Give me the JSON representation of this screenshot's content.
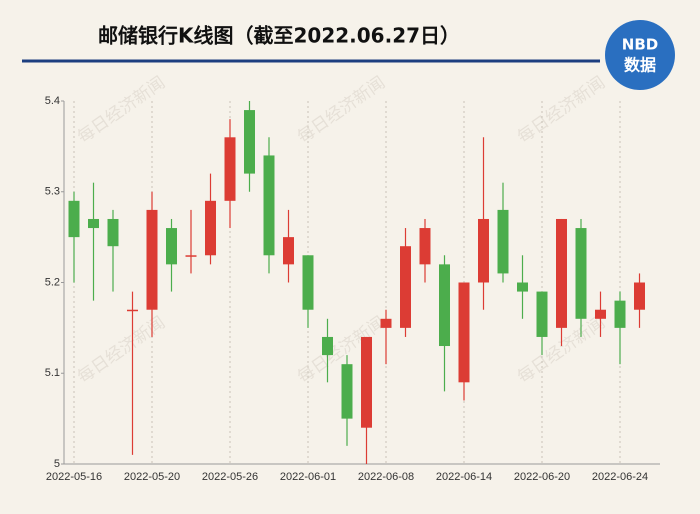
{
  "chart_data": {
    "type": "candlestick",
    "title": "邮储银行K线图（截至2022.06.27日）",
    "logo": {
      "top": "NBD",
      "bottom": "数据"
    },
    "watermark": "每日经济新闻",
    "categories": [
      "2022-05-16",
      null,
      null,
      null,
      "2022-05-20",
      null,
      null,
      null,
      "2022-05-26",
      null,
      null,
      null,
      "2022-06-01",
      null,
      null,
      null,
      "2022-06-08",
      null,
      null,
      null,
      "2022-06-14",
      null,
      null,
      null,
      "2022-06-20",
      null,
      null,
      null,
      "2022-06-24",
      null
    ],
    "open": [
      5.29,
      5.27,
      5.27,
      5.17,
      5.17,
      5.26,
      5.23,
      5.23,
      5.29,
      5.39,
      5.34,
      5.22,
      5.23,
      5.14,
      5.11,
      5.04,
      5.15,
      5.15,
      5.22,
      5.22,
      5.09,
      5.2,
      5.28,
      5.2,
      5.19,
      5.15,
      5.26,
      5.16,
      5.18,
      5.17
    ],
    "high": [
      5.3,
      5.31,
      5.28,
      5.19,
      5.3,
      5.27,
      5.28,
      5.32,
      5.38,
      5.4,
      5.36,
      5.28,
      5.23,
      5.16,
      5.12,
      5.14,
      5.17,
      5.26,
      5.27,
      5.23,
      5.2,
      5.36,
      5.31,
      5.23,
      5.19,
      5.27,
      5.27,
      5.19,
      5.19,
      5.21
    ],
    "low": [
      5.2,
      5.18,
      5.19,
      5.01,
      5.14,
      5.19,
      5.21,
      5.22,
      5.26,
      5.3,
      5.21,
      5.2,
      5.15,
      5.09,
      5.02,
      5.0,
      5.11,
      5.14,
      5.2,
      5.08,
      5.07,
      5.17,
      5.2,
      5.16,
      5.12,
      5.13,
      5.14,
      5.14,
      5.11,
      5.15
    ],
    "close": [
      5.25,
      5.26,
      5.24,
      5.17,
      5.28,
      5.22,
      5.23,
      5.29,
      5.36,
      5.32,
      5.23,
      5.25,
      5.17,
      5.12,
      5.05,
      5.14,
      5.16,
      5.24,
      5.26,
      5.13,
      5.2,
      5.27,
      5.21,
      5.19,
      5.14,
      5.27,
      5.16,
      5.17,
      5.15,
      5.2
    ],
    "up_color": "#dc3c34",
    "down_color": "#4cad4c",
    "ylim": [
      5,
      5.4
    ],
    "yticks": [
      5,
      5.1,
      5.2,
      5.3,
      5.4
    ],
    "grid": true
  }
}
